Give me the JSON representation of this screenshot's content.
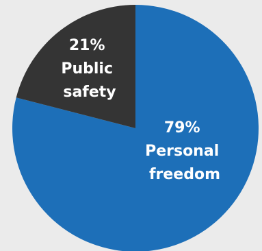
{
  "chart_data": {
    "type": "pie",
    "title": "",
    "slices": [
      {
        "name": "Personal freedom",
        "value": 79,
        "label_lines": [
          "79%",
          "Personal",
          "freedom"
        ],
        "color": "#1d6fb8"
      },
      {
        "name": "Public safety",
        "value": 21,
        "label_lines": [
          "21%",
          "Public",
          "safety"
        ],
        "color": "#343434"
      }
    ],
    "start_angle_deg": 0,
    "direction": "clockwise",
    "legend": "none"
  },
  "colors": {
    "background": "#ebebeb",
    "label_text": "#ffffff"
  }
}
